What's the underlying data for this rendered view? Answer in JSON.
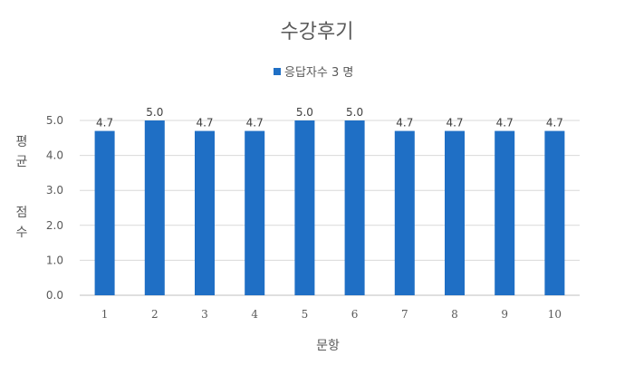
{
  "chart_data": {
    "type": "bar",
    "title": "수강후기",
    "xlabel": "문항",
    "ylabel": "평균 점수",
    "ylabel_lines": [
      "평균",
      "점수"
    ],
    "categories": [
      "1",
      "2",
      "3",
      "4",
      "5",
      "6",
      "7",
      "8",
      "9",
      "10"
    ],
    "series": [
      {
        "name": "응답자수 3 명",
        "values": [
          4.7,
          5.0,
          4.7,
          4.7,
          5.0,
          5.0,
          4.7,
          4.7,
          4.7,
          4.7
        ],
        "color": "#1f6fc5"
      }
    ],
    "data_labels": [
      "4.7",
      "5.0",
      "4.7",
      "4.7",
      "5.0",
      "5.0",
      "4.7",
      "4.7",
      "4.7",
      "4.7"
    ],
    "ylim": [
      0,
      5
    ],
    "yticks": [
      "0.0",
      "1.0",
      "2.0",
      "3.0",
      "4.0",
      "5.0"
    ],
    "grid": true,
    "legend_position": "top"
  }
}
